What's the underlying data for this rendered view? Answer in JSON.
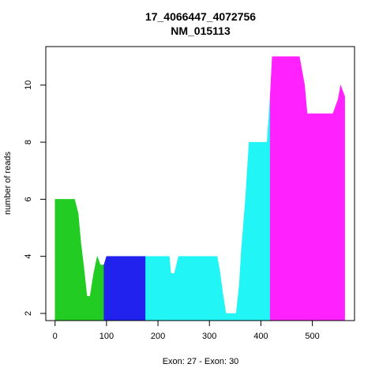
{
  "chart_data": {
    "type": "area",
    "title": "17_4066447_4072756",
    "subtitle": "NM_015113",
    "xlabel": "Exon: 27 - Exon: 30",
    "ylabel": "number of reads",
    "xlim": [
      -18,
      582
    ],
    "ylim": [
      1.75,
      11.35
    ],
    "xticks": [
      0,
      100,
      200,
      300,
      400,
      500
    ],
    "yticks": [
      2,
      4,
      6,
      8,
      10
    ],
    "grid": false,
    "legend": "none",
    "series": [
      {
        "color": "#22cc22",
        "points": [
          [
            0,
            6
          ],
          [
            38,
            6
          ],
          [
            45,
            5.5
          ],
          [
            50,
            4.5
          ],
          [
            56,
            3.6
          ],
          [
            62,
            2.6
          ],
          [
            68,
            2.6
          ],
          [
            75,
            3.4
          ],
          [
            82,
            4
          ],
          [
            88,
            3.7
          ],
          [
            95,
            3.7
          ]
        ]
      },
      {
        "color": "#2222ee",
        "points": [
          [
            95,
            3.7
          ],
          [
            100,
            4
          ],
          [
            176,
            4
          ]
        ]
      },
      {
        "color": "#22f5f5",
        "points": [
          [
            176,
            4
          ],
          [
            222,
            4
          ],
          [
            225,
            3.4
          ],
          [
            232,
            3.4
          ],
          [
            240,
            4
          ],
          [
            315,
            4
          ],
          [
            320,
            3.5
          ],
          [
            326,
            2.7
          ],
          [
            332,
            2
          ],
          [
            352,
            2
          ],
          [
            358,
            3
          ],
          [
            362,
            4.2
          ],
          [
            370,
            6
          ],
          [
            377,
            8
          ],
          [
            412,
            8
          ],
          [
            418,
            9.6
          ]
        ]
      },
      {
        "color": "#ff22ff",
        "points": [
          [
            418,
            9.6
          ],
          [
            422,
            11
          ],
          [
            475,
            11
          ],
          [
            485,
            10
          ],
          [
            490,
            9
          ],
          [
            540,
            9
          ],
          [
            550,
            9.5
          ],
          [
            555,
            10
          ],
          [
            563,
            9.6
          ]
        ]
      }
    ]
  }
}
